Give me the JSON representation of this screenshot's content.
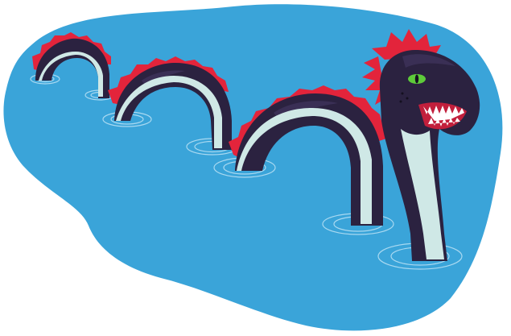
{
  "illustration": {
    "subject": "sea-serpent-in-lake",
    "colors": {
      "background": "#ffffff",
      "water": "#3aa4d9",
      "ripple": "#a9d9f1",
      "body_dark": "#2b2240",
      "body_stripe": "#3a2f55",
      "belly": "#cfe8e6",
      "spikes": "#e3243b",
      "eye": "#5ecb3a",
      "pupil": "#14101f",
      "mouth": "#c21f3c",
      "teeth": "#ffffff"
    }
  }
}
